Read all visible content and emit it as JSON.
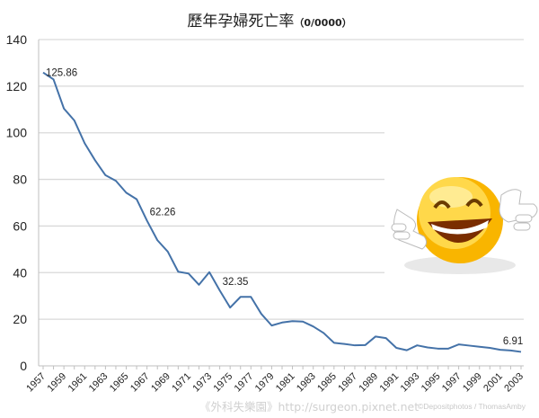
{
  "chart_data": {
    "type": "line",
    "title": "歷年孕婦死亡率",
    "title_unit": "（0/0000）",
    "xlabel": "",
    "ylabel": "",
    "ylim": [
      0,
      140
    ],
    "yticks": [
      0,
      20,
      40,
      60,
      80,
      100,
      120,
      140
    ],
    "grid": true,
    "legend": "none",
    "x": [
      1957,
      1958,
      1959,
      1960,
      1961,
      1962,
      1963,
      1964,
      1965,
      1966,
      1967,
      1968,
      1969,
      1970,
      1971,
      1972,
      1973,
      1974,
      1975,
      1976,
      1977,
      1978,
      1979,
      1980,
      1981,
      1982,
      1983,
      1984,
      1985,
      1986,
      1987,
      1988,
      1989,
      1990,
      1991,
      1992,
      1993,
      1994,
      1995,
      1996,
      1997,
      1998,
      1999,
      2000,
      2001,
      2002,
      2003
    ],
    "xtick_labels": [
      "1957",
      "1959",
      "1961",
      "1963",
      "1965",
      "1967",
      "1969",
      "1971",
      "1973",
      "1975",
      "1977",
      "1979",
      "1981",
      "1983",
      "1985",
      "1987",
      "1989",
      "1991",
      "1993",
      "1995",
      "1997",
      "1999",
      "2001",
      "2003"
    ],
    "series": [
      {
        "name": "孕婦死亡率",
        "color": "#4472a8",
        "values": [
          125.86,
          122.9,
          110.4,
          105.3,
          95.5,
          88.2,
          81.8,
          79.4,
          74.3,
          71.5,
          62.26,
          53.9,
          49.0,
          40.4,
          39.6,
          34.8,
          40.2,
          32.35,
          25.0,
          29.6,
          29.6,
          22.3,
          17.3,
          18.6,
          19.2,
          19.0,
          16.9,
          14.1,
          9.9,
          9.4,
          8.8,
          8.9,
          12.6,
          11.9,
          7.7,
          6.7,
          8.8,
          7.9,
          7.4,
          7.4,
          9.2,
          8.7,
          8.2,
          7.7,
          6.91,
          6.6,
          6.0
        ]
      }
    ],
    "annotations": [
      {
        "x": 1957,
        "text": "125.86"
      },
      {
        "x": 1967,
        "text": "62.26"
      },
      {
        "x": 1974,
        "text": "32.35"
      },
      {
        "x": 2001,
        "text": "6.91"
      }
    ]
  },
  "watermarks": {
    "site": "《外科失樂園》http://surgeon.pixnet.net",
    "credit": "©Depositphotos / ThomasAmby"
  },
  "icons": {
    "decoration": "laughing-smiley-icon"
  }
}
